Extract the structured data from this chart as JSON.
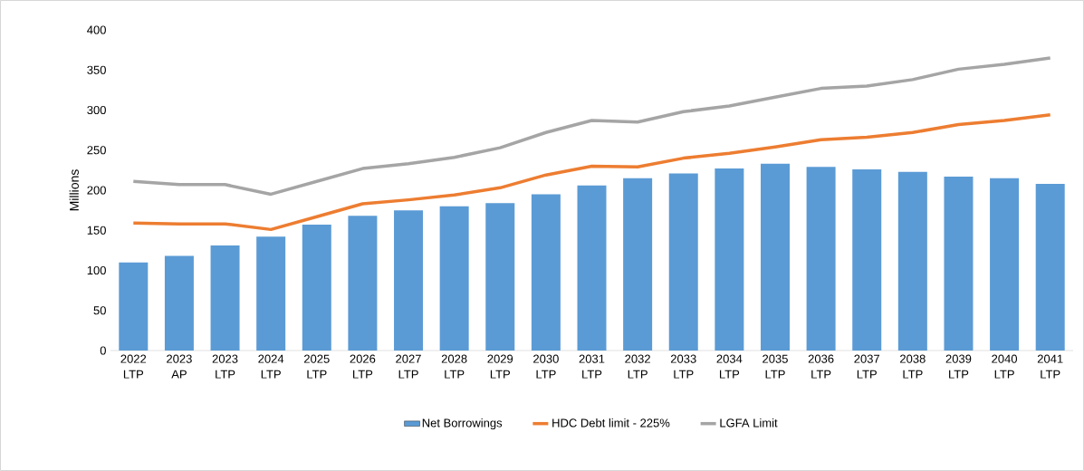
{
  "chart_data": {
    "type": "bar",
    "ylabel": "Millions",
    "categories": [
      "2022 LTP",
      "2023 AP",
      "2023 LTP",
      "2024 LTP",
      "2025 LTP",
      "2026 LTP",
      "2027 LTP",
      "2028 LTP",
      "2029 LTP",
      "2030 LTP",
      "2031 LTP",
      "2032 LTP",
      "2033 LTP",
      "2034 LTP",
      "2035 LTP",
      "2036 LTP",
      "2037 LTP",
      "2038 LTP",
      "2039 LTP",
      "2040 LTP",
      "2041 LTP"
    ],
    "series": [
      {
        "name": "Net Borrowings",
        "color": "#5b9bd5",
        "values": [
          110,
          118,
          131,
          142,
          157,
          168,
          175,
          180,
          184,
          195,
          206,
          215,
          221,
          227,
          233,
          229,
          226,
          223,
          217,
          215,
          208
        ]
      },
      {
        "name": "HDC Debt limit  - 225%",
        "type": "line",
        "color": "#ed7d31",
        "values": [
          159,
          158,
          158,
          151,
          167,
          183,
          188,
          194,
          203,
          219,
          230,
          229,
          240,
          246,
          254,
          263,
          266,
          272,
          282,
          287,
          294
        ]
      },
      {
        "name": "LGFA Limit",
        "type": "line",
        "color": "#a5a5a5",
        "values": [
          211,
          207,
          207,
          195,
          211,
          227,
          233,
          241,
          253,
          272,
          287,
          285,
          298,
          305,
          316,
          327,
          330,
          338,
          351,
          357,
          365
        ]
      }
    ],
    "ylim": [
      0,
      400
    ],
    "yticks": [
      0,
      50,
      100,
      150,
      200,
      250,
      300,
      350,
      400
    ],
    "legend": "bottom"
  }
}
